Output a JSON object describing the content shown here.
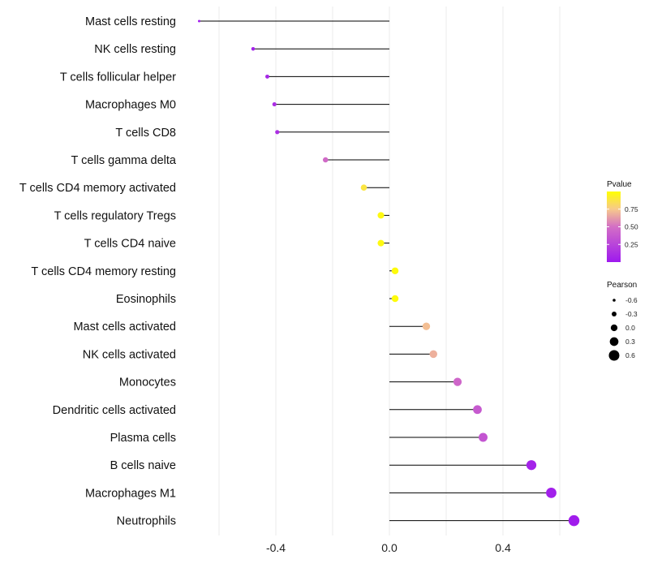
{
  "chart_data": {
    "type": "lollipop",
    "title": "",
    "xlabel": "",
    "ylabel": "",
    "xlim": [
      -0.67,
      0.67
    ],
    "x_ticks": [
      -0.4,
      0.0,
      0.4
    ],
    "x_tick_labels": [
      "-0.4",
      "0.0",
      "0.4"
    ],
    "minor_gridlines_x": [
      -0.6,
      -0.2,
      0.2,
      0.6
    ],
    "categories": [
      "Mast cells resting",
      "NK cells resting",
      "T cells follicular helper",
      "Macrophages M0",
      "T cells CD8",
      "T cells gamma delta",
      "T cells CD4 memory activated",
      "T cells regulatory  Tregs ",
      "T cells CD4 naive",
      "T cells CD4 memory resting",
      "Eosinophils",
      "Mast cells activated",
      "NK cells activated",
      "Monocytes",
      "Dendritic cells activated",
      "Plasma cells",
      "B cells naive",
      "Macrophages M1",
      "Neutrophils"
    ],
    "pearson": [
      -0.67,
      -0.48,
      -0.43,
      -0.405,
      -0.395,
      -0.225,
      -0.09,
      -0.03,
      -0.03,
      0.02,
      0.02,
      0.13,
      0.155,
      0.24,
      0.31,
      0.33,
      0.5,
      0.57,
      0.65
    ],
    "pvalue": [
      0.02,
      0.05,
      0.08,
      0.12,
      0.13,
      0.47,
      0.88,
      0.97,
      0.97,
      0.98,
      0.98,
      0.72,
      0.68,
      0.45,
      0.38,
      0.35,
      0.06,
      0.04,
      0.02
    ],
    "legend_pvalue": {
      "title": "Pvalue",
      "range": [
        0.0,
        1.0
      ],
      "ticks": [
        0.25,
        0.5,
        0.75
      ],
      "tick_labels": [
        "0.25",
        "0.50",
        "0.75"
      ],
      "colors": [
        "#9e19ee",
        "#d36fc5",
        "#f7c98c",
        "#ffff00"
      ]
    },
    "legend_pearson": {
      "title": "Pearson",
      "values": [
        -0.6,
        -0.3,
        0.0,
        0.3,
        0.6
      ],
      "labels": [
        "-0.6",
        "-0.3",
        "0.0",
        "0.3",
        "0.6"
      ]
    }
  }
}
